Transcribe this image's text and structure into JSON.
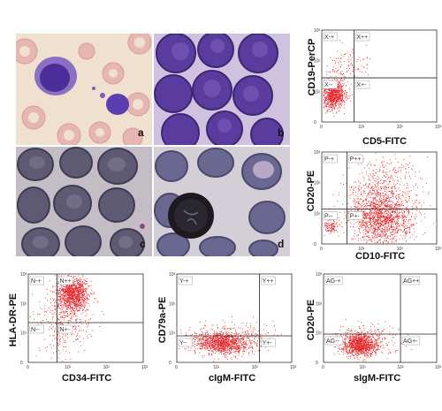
{
  "panels": [
    {
      "id": "a",
      "label": "a",
      "bg": "#efe0cf"
    },
    {
      "id": "b",
      "label": "b",
      "bg": "#cfc2df"
    },
    {
      "id": "c",
      "label": "c",
      "bg": "#c4bdc5"
    },
    {
      "id": "d",
      "label": "d",
      "bg": "#d4cfd6"
    }
  ],
  "flow_plots": [
    {
      "id": "cd19-cd5",
      "ylabel": "CD19-PerCP",
      "xlabel": "CD5-FITC",
      "quadrants": {
        "ul": "X-+",
        "ur": "X++",
        "ll": "X--",
        "lr": "X+-"
      }
    },
    {
      "id": "cd20-cd10",
      "ylabel": "CD20-PE",
      "xlabel": "CD10-FITC",
      "quadrants": {
        "ul": "P-+",
        "ur": "P++",
        "ll": "P--",
        "lr": "P+-"
      }
    },
    {
      "id": "hla-cd34",
      "ylabel": "HLA-DR-PE",
      "xlabel": "CD34-FITC",
      "quadrants": {
        "ul": "N-+",
        "ur": "N++",
        "ll": "N--",
        "lr": "N+-"
      }
    },
    {
      "id": "cd79a-cigm",
      "ylabel": "CD79a-PE",
      "xlabel": "cIgM-FITC",
      "quadrants": {
        "ul": "Y-+",
        "ur": "Y++",
        "ll": "Y--",
        "lr": "Y+-"
      }
    },
    {
      "id": "cd20-sigm",
      "ylabel": "CD20-PE",
      "xlabel": "sIgM-FITC",
      "quadrants": {
        "ul": "AG-+",
        "ur": "AG++",
        "ll": "AG--",
        "lr": "AG+-"
      }
    }
  ],
  "tick_labels": [
    "0",
    "10¹",
    "10²",
    "10³"
  ],
  "colors": {
    "dots": "#e3262a",
    "axis": "#333333"
  }
}
